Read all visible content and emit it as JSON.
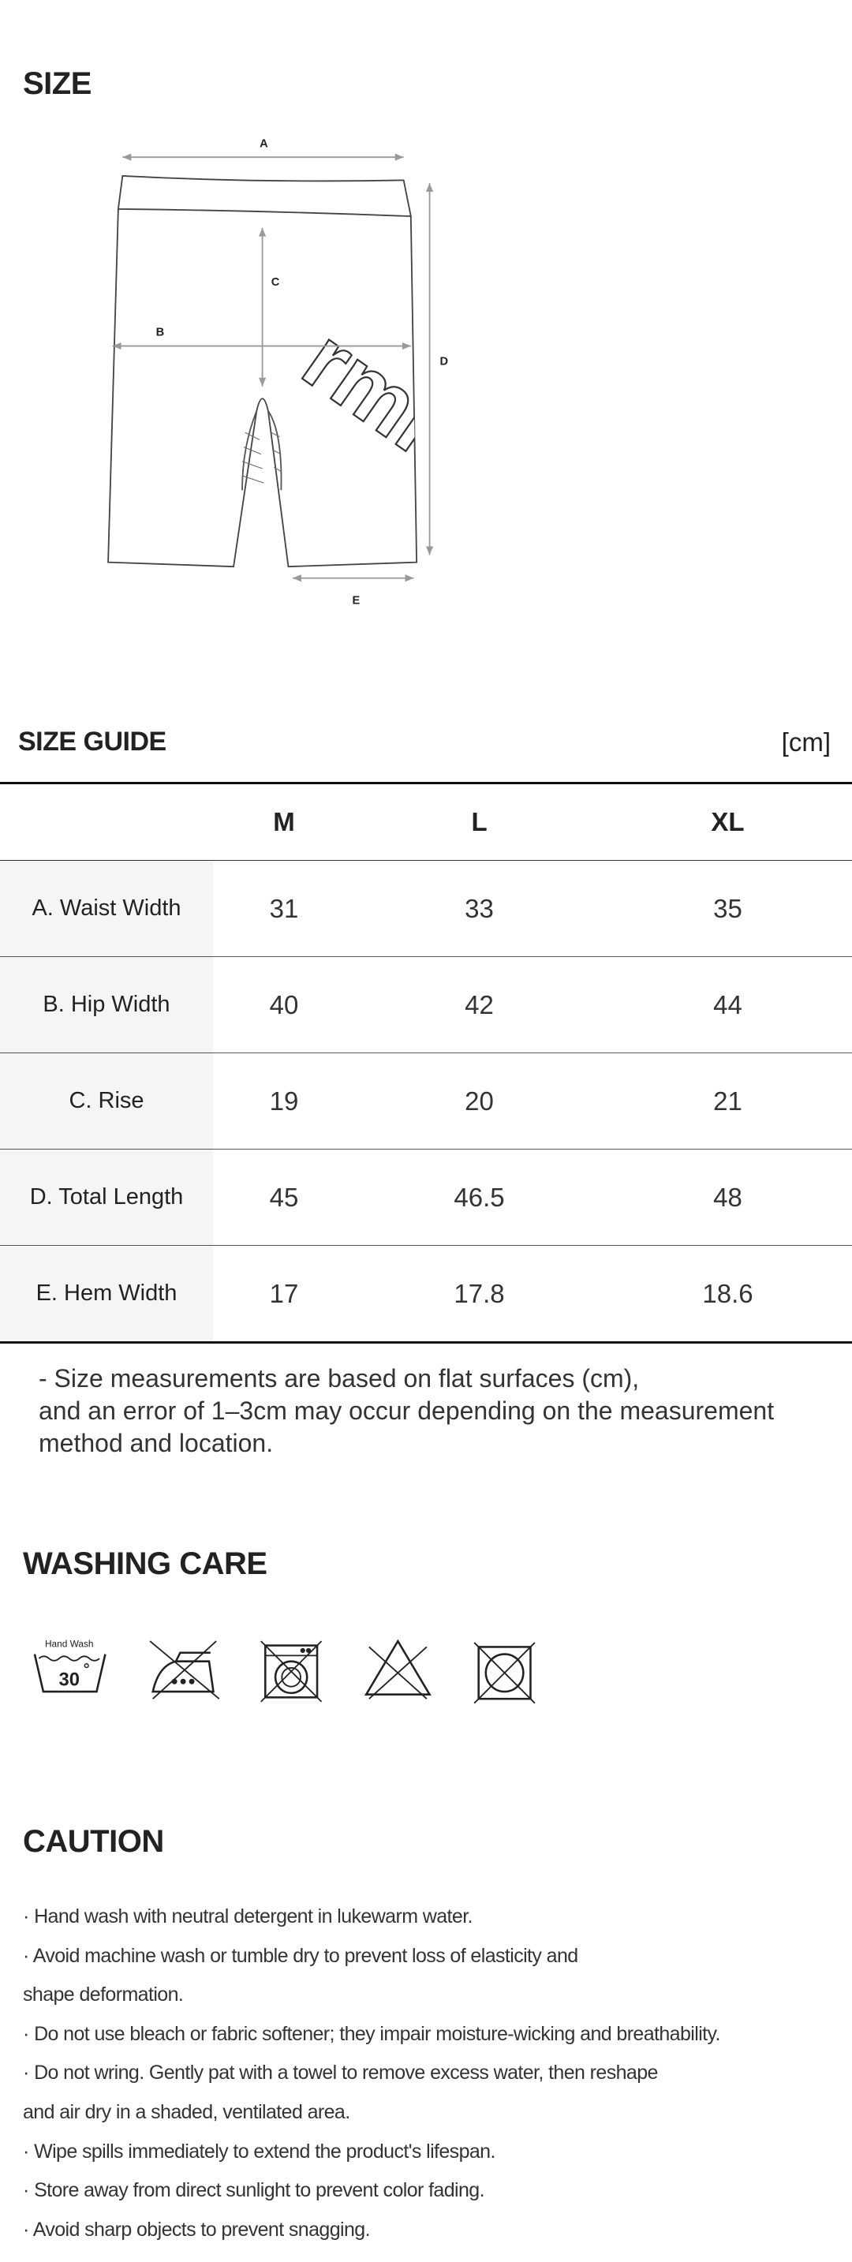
{
  "size": {
    "title": "SIZE",
    "diagram": {
      "labels": [
        "A",
        "B",
        "C",
        "D",
        "E"
      ],
      "logo": "rmi"
    }
  },
  "size_guide": {
    "title": "SIZE GUIDE",
    "unit": "[cm]",
    "table": {
      "columns": [
        "M",
        "L",
        "XL"
      ],
      "rows": [
        {
          "label": "A. Waist Width",
          "values": [
            31,
            33,
            35
          ]
        },
        {
          "label": "B. Hip Width",
          "values": [
            40,
            42,
            44
          ]
        },
        {
          "label": "C. Rise",
          "values": [
            19,
            20,
            21
          ]
        },
        {
          "label": "D. Total Length",
          "values": [
            45,
            46.5,
            48
          ]
        },
        {
          "label": "E. Hem Width",
          "values": [
            17,
            17.8,
            18.6
          ]
        }
      ]
    }
  },
  "note": [
    "- Size measurements are based on flat surfaces (cm),",
    "and an error of 1–3cm may occur depending on the measurement",
    "method and location."
  ],
  "washing_care": {
    "title": "WASHING CARE",
    "icon_texts": [
      "Hand Wash",
      30
    ]
  },
  "caution": {
    "title": "CAUTION",
    "lines": [
      "· Hand wash with neutral detergent in lukewarm water.",
      "· Avoid machine wash or tumble dry to prevent loss of elasticity and",
      "shape deformation.",
      "· Do not use bleach or fabric softener; they impair moisture-wicking and breathability.",
      "· Do not wring. Gently pat with a towel to remove excess water, then reshape",
      "and air dry in a shaded, ventilated area.",
      "· Wipe spills immediately to extend the product's lifespan.",
      "· Store away from direct sunlight to prevent color fading.",
      "· Avoid sharp objects to prevent snagging."
    ]
  }
}
